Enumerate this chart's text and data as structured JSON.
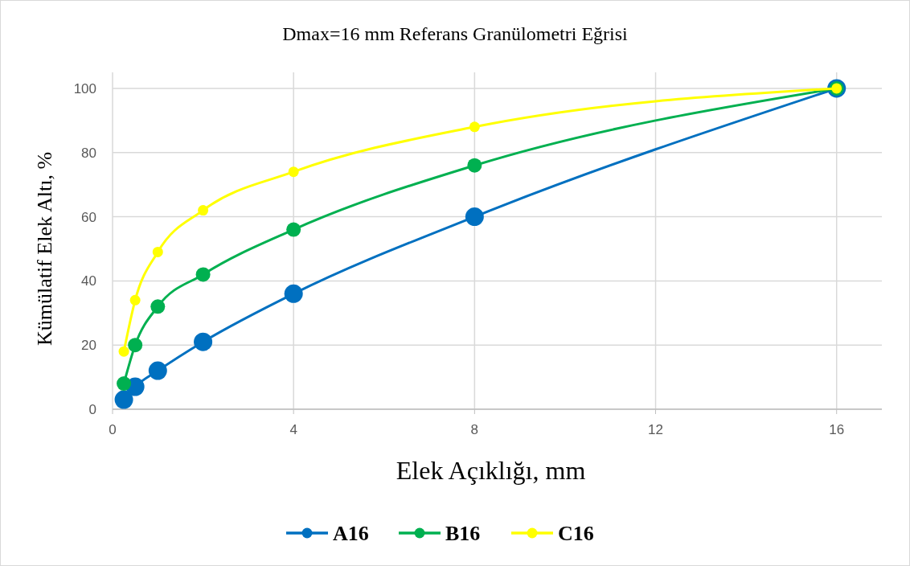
{
  "chart_data": {
    "type": "line",
    "title": "Dmax=16 mm Referans Granülometri Eğrisi",
    "xlabel": "Elek Açıklığı, mm",
    "ylabel": "Kümülatif Elek Altı, %",
    "x": [
      0.25,
      0.5,
      1,
      2,
      4,
      8,
      16
    ],
    "series": [
      {
        "name": "A16",
        "color": "#0070c0",
        "values": [
          3,
          7,
          12,
          21,
          36,
          60,
          100
        ]
      },
      {
        "name": "B16",
        "color": "#00b050",
        "values": [
          8,
          20,
          32,
          42,
          56,
          76,
          100
        ]
      },
      {
        "name": "C16",
        "color": "#ffff00",
        "values": [
          18,
          34,
          49,
          62,
          74,
          88,
          100
        ]
      }
    ],
    "xlim": [
      0,
      17
    ],
    "xticks": [
      0,
      4,
      8,
      12,
      16
    ],
    "ylim": [
      0,
      105
    ],
    "yticks": [
      0,
      20,
      40,
      60,
      80,
      100
    ],
    "grid": true,
    "legend": "bottom",
    "marker": "circle",
    "line_style": "solid"
  }
}
